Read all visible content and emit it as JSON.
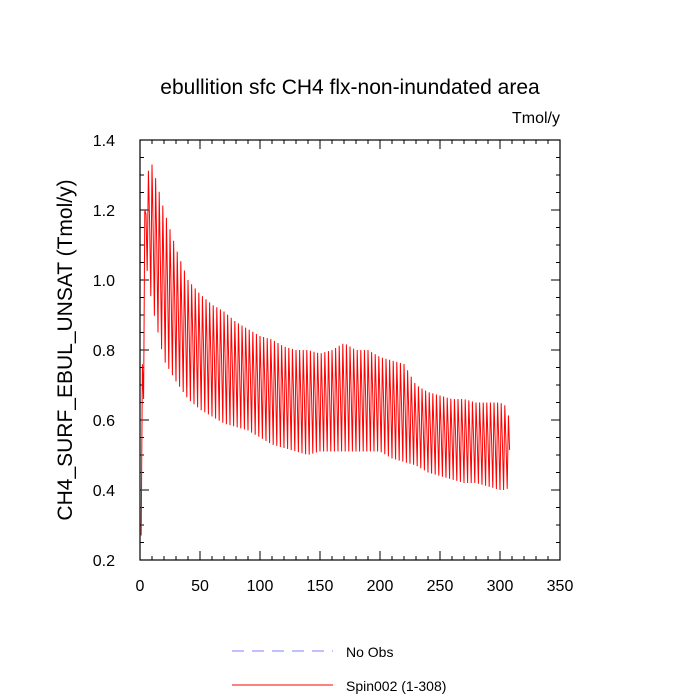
{
  "chart_data": {
    "type": "line",
    "title": "ebullition sfc CH4 flx-non-inundated area",
    "units_label": "Tmol/y",
    "xlabel": "",
    "ylabel": "CH4_SURF_EBUL_UNSAT  (Tmol/y)",
    "xlim": [
      0,
      350
    ],
    "ylim": [
      0.2,
      1.4
    ],
    "x_ticks": [
      0,
      50,
      100,
      150,
      200,
      250,
      300,
      350
    ],
    "y_ticks": [
      0.2,
      0.4,
      0.6,
      0.8,
      1.0,
      1.2,
      1.4
    ],
    "x_tick_labels": [
      "0",
      "50",
      "100",
      "150",
      "200",
      "250",
      "300",
      "350"
    ],
    "y_tick_labels": [
      "0.2",
      "0.4",
      "0.6",
      "0.8",
      "1.0",
      "1.2",
      "1.4"
    ],
    "grid": false,
    "legend_position": "bottom",
    "series": [
      {
        "name": "No Obs",
        "color": "#8080ff",
        "dash": "dashed",
        "values": []
      },
      {
        "name": "Spin002 (1-308)",
        "color": "#ff0000",
        "dash": "solid",
        "x_range": [
          1,
          308
        ],
        "envelope": {
          "x": [
            1,
            5,
            10,
            20,
            30,
            40,
            50,
            60,
            70,
            80,
            90,
            100,
            110,
            120,
            130,
            140,
            150,
            160,
            170,
            180,
            190,
            200,
            210,
            220,
            230,
            240,
            250,
            260,
            270,
            280,
            290,
            300,
            305,
            308
          ],
          "hi": [
            0.9,
            1.3,
            1.33,
            1.2,
            1.09,
            1.0,
            0.96,
            0.93,
            0.91,
            0.88,
            0.86,
            0.84,
            0.83,
            0.81,
            0.8,
            0.8,
            0.79,
            0.8,
            0.82,
            0.8,
            0.8,
            0.78,
            0.77,
            0.76,
            0.7,
            0.68,
            0.67,
            0.66,
            0.66,
            0.65,
            0.65,
            0.65,
            0.64,
            0.6
          ],
          "lo": [
            0.27,
            1.05,
            0.93,
            0.77,
            0.71,
            0.66,
            0.63,
            0.61,
            0.59,
            0.58,
            0.57,
            0.55,
            0.53,
            0.52,
            0.51,
            0.5,
            0.51,
            0.51,
            0.51,
            0.51,
            0.51,
            0.51,
            0.49,
            0.48,
            0.47,
            0.45,
            0.44,
            0.43,
            0.42,
            0.42,
            0.41,
            0.4,
            0.4,
            0.41
          ]
        },
        "cycle_period": 3
      }
    ]
  }
}
